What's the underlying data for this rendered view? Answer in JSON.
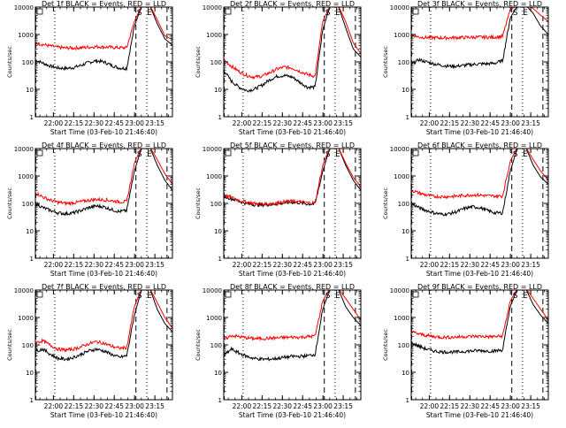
{
  "chart_data": [
    {
      "type": "line",
      "title": "Det 1f BLACK = Events, RED = LLD",
      "xlabel": "Start Time (03-Feb-10 21:46:40)",
      "ylabel": "Counts/sec",
      "yscale": "log",
      "ylim": [
        1,
        10000
      ],
      "xlim": [
        "21:46:40",
        "23:28"
      ],
      "x_ticks": [
        "22:00",
        "22:15",
        "22:30",
        "22:45",
        "23:00",
        "23:15"
      ],
      "y_ticks": [
        "1",
        "10",
        "100",
        "1000",
        "10000"
      ],
      "grid": false,
      "markers": [
        "S",
        "E"
      ],
      "series": [
        {
          "color": "#000000",
          "values": [
            120,
            90,
            70,
            60,
            58,
            62,
            75,
            95,
            110,
            100,
            75,
            60,
            58,
            2000,
            12000,
            12000,
            2500,
            700,
            400
          ]
        },
        {
          "color": "#ff0000",
          "values": [
            500,
            430,
            380,
            340,
            320,
            320,
            330,
            345,
            360,
            350,
            340,
            330,
            330,
            3000,
            12000,
            12000,
            3500,
            900,
            650
          ]
        }
      ],
      "vlines": [
        {
          "x": "21:47",
          "style": "dashed"
        },
        {
          "x": "22:01",
          "style": "dotted"
        },
        {
          "x": "23:01",
          "style": "dashed"
        },
        {
          "x": "23:09",
          "style": "dotted"
        },
        {
          "x": "23:24",
          "style": "dashed"
        }
      ]
    },
    {
      "type": "line",
      "title": "Det 2f BLACK = Events, RED = LLD",
      "xlabel": "Start Time (03-Feb-10 21:46:40)",
      "ylabel": "Counts/sec",
      "yscale": "log",
      "ylim": [
        1,
        10000
      ],
      "xlim": [
        "21:46:40",
        "23:28"
      ],
      "x_ticks": [
        "22:00",
        "22:15",
        "22:30",
        "22:45",
        "23:00",
        "23:15"
      ],
      "y_ticks": [
        "1",
        "10",
        "100",
        "1000",
        "10000"
      ],
      "grid": false,
      "markers": [
        "S",
        "E"
      ],
      "series": [
        {
          "color": "#000000",
          "values": [
            50,
            20,
            12,
            9,
            10,
            14,
            22,
            30,
            32,
            28,
            18,
            12,
            12,
            1500,
            12000,
            12000,
            1800,
            300,
            150
          ]
        },
        {
          "color": "#ff0000",
          "values": [
            120,
            70,
            45,
            32,
            28,
            30,
            40,
            55,
            65,
            60,
            45,
            35,
            30,
            3000,
            12000,
            12000,
            3000,
            500,
            200
          ]
        }
      ],
      "vlines": [
        {
          "x": "21:47",
          "style": "dashed"
        },
        {
          "x": "22:01",
          "style": "dotted"
        },
        {
          "x": "23:01",
          "style": "dashed"
        },
        {
          "x": "23:09",
          "style": "dotted"
        },
        {
          "x": "23:24",
          "style": "dashed"
        }
      ]
    },
    {
      "type": "line",
      "title": "Det 3f BLACK = Events, RED = LLD",
      "xlabel": "Start Time (03-Feb-10 21:46:40)",
      "ylabel": "Counts/sec",
      "yscale": "log",
      "ylim": [
        1,
        10000
      ],
      "xlim": [
        "21:46:40",
        "23:28"
      ],
      "x_ticks": [
        "22:00",
        "22:15",
        "22:30",
        "22:45",
        "23:00",
        "23:15"
      ],
      "y_ticks": [
        "1",
        "10",
        "100",
        "1000",
        "10000"
      ],
      "grid": false,
      "markers": [
        "S",
        "E"
      ],
      "series": [
        {
          "color": "#000000",
          "values": [
            80,
            120,
            100,
            85,
            75,
            70,
            70,
            75,
            80,
            85,
            85,
            90,
            110,
            4000,
            12000,
            12000,
            6000,
            2000,
            1000
          ]
        },
        {
          "color": "#ff0000",
          "values": [
            1000,
            800,
            780,
            760,
            750,
            760,
            770,
            780,
            790,
            800,
            790,
            800,
            850,
            8000,
            12000,
            12000,
            9000,
            5000,
            3000
          ]
        }
      ],
      "vlines": [
        {
          "x": "21:47",
          "style": "dashed"
        },
        {
          "x": "22:01",
          "style": "dotted"
        },
        {
          "x": "23:01",
          "style": "dashed"
        },
        {
          "x": "23:09",
          "style": "dotted"
        },
        {
          "x": "23:24",
          "style": "dashed"
        }
      ]
    },
    {
      "type": "line",
      "title": "Det 4f BLACK = Events, RED = LLD",
      "xlabel": "Start Time (03-Feb-10 21:46:40)",
      "ylabel": "Counts/sec",
      "yscale": "log",
      "ylim": [
        1,
        10000
      ],
      "xlim": [
        "21:46:40",
        "23:28"
      ],
      "x_ticks": [
        "22:00",
        "22:15",
        "22:30",
        "22:45",
        "23:00",
        "23:15"
      ],
      "y_ticks": [
        "1",
        "10",
        "100",
        "1000",
        "10000"
      ],
      "grid": false,
      "markers": [
        "S",
        "E"
      ],
      "series": [
        {
          "color": "#000000",
          "values": [
            100,
            70,
            55,
            45,
            42,
            45,
            55,
            70,
            80,
            75,
            60,
            50,
            55,
            1500,
            12000,
            12000,
            2500,
            700,
            300
          ]
        },
        {
          "color": "#ff0000",
          "values": [
            250,
            170,
            130,
            110,
            100,
            105,
            115,
            130,
            140,
            135,
            125,
            115,
            115,
            3000,
            12000,
            12000,
            4000,
            1200,
            500
          ]
        }
      ],
      "vlines": [
        {
          "x": "21:47",
          "style": "dashed"
        },
        {
          "x": "22:01",
          "style": "dotted"
        },
        {
          "x": "23:01",
          "style": "dashed"
        },
        {
          "x": "23:09",
          "style": "dotted"
        },
        {
          "x": "23:24",
          "style": "dashed"
        }
      ]
    },
    {
      "type": "line",
      "title": "Det 5f BLACK = Events, RED = LLD",
      "xlabel": "Start Time (03-Feb-10 21:46:40)",
      "ylabel": "Counts/sec",
      "yscale": "log",
      "ylim": [
        1,
        10000
      ],
      "xlim": [
        "21:46:40",
        "23:28"
      ],
      "x_ticks": [
        "22:00",
        "22:15",
        "22:30",
        "22:45",
        "23:00",
        "23:15"
      ],
      "y_ticks": [
        "1",
        "10",
        "100",
        "1000",
        "10000"
      ],
      "grid": false,
      "markers": [
        "S",
        "E"
      ],
      "series": [
        {
          "color": "#000000",
          "values": [
            180,
            150,
            120,
            100,
            90,
            88,
            90,
            95,
            105,
            110,
            105,
            95,
            95,
            1500,
            12000,
            12000,
            2500,
            700,
            300
          ]
        },
        {
          "color": "#ff0000",
          "values": [
            200,
            165,
            130,
            110,
            100,
            95,
            98,
            105,
            115,
            120,
            115,
            105,
            105,
            2500,
            12000,
            12000,
            3000,
            900,
            400
          ]
        }
      ],
      "vlines": [
        {
          "x": "21:47",
          "style": "dashed"
        },
        {
          "x": "22:01",
          "style": "dotted"
        },
        {
          "x": "23:01",
          "style": "dashed"
        },
        {
          "x": "23:09",
          "style": "dotted"
        },
        {
          "x": "23:24",
          "style": "dashed"
        }
      ]
    },
    {
      "type": "line",
      "title": "Det 6f BLACK = Events, RED = LLD",
      "xlabel": "Start Time (03-Feb-10 21:46:40)",
      "ylabel": "Counts/sec",
      "yscale": "log",
      "ylim": [
        1,
        10000
      ],
      "xlim": [
        "21:46:40",
        "23:28"
      ],
      "x_ticks": [
        "22:00",
        "22:15",
        "22:30",
        "22:45",
        "23:00",
        "23:15"
      ],
      "y_ticks": [
        "1",
        "10",
        "100",
        "1000",
        "10000"
      ],
      "grid": false,
      "markers": [
        "S",
        "E"
      ],
      "series": [
        {
          "color": "#000000",
          "values": [
            100,
            70,
            55,
            45,
            40,
            42,
            50,
            65,
            75,
            70,
            55,
            45,
            45,
            1500,
            12000,
            12000,
            2500,
            900,
            500
          ]
        },
        {
          "color": "#ff0000",
          "values": [
            300,
            240,
            200,
            180,
            175,
            178,
            185,
            195,
            205,
            200,
            190,
            185,
            185,
            3500,
            12000,
            12000,
            4000,
            1500,
            700
          ]
        }
      ],
      "vlines": [
        {
          "x": "21:47",
          "style": "dashed"
        },
        {
          "x": "22:01",
          "style": "dotted"
        },
        {
          "x": "23:01",
          "style": "dashed"
        },
        {
          "x": "23:09",
          "style": "dotted"
        },
        {
          "x": "23:24",
          "style": "dashed"
        }
      ]
    },
    {
      "type": "line",
      "title": "Det 7f BLACK = Events, RED = LLD",
      "xlabel": "Start Time (03-Feb-10 21:46:40)",
      "ylabel": "Counts/sec",
      "yscale": "log",
      "ylim": [
        1,
        10000
      ],
      "xlim": [
        "21:46:40",
        "23:28"
      ],
      "x_ticks": [
        "22:00",
        "22:15",
        "22:30",
        "22:45",
        "23:00",
        "23:15"
      ],
      "y_ticks": [
        "1",
        "10",
        "100",
        "1000",
        "10000"
      ],
      "grid": false,
      "markers": [
        "S",
        "E"
      ],
      "series": [
        {
          "color": "#000000",
          "values": [
            60,
            70,
            45,
            32,
            30,
            35,
            45,
            60,
            70,
            60,
            45,
            35,
            40,
            1200,
            12000,
            12000,
            2000,
            600,
            300
          ]
        },
        {
          "color": "#ff0000",
          "values": [
            120,
            140,
            95,
            70,
            65,
            70,
            85,
            110,
            130,
            115,
            90,
            75,
            80,
            2500,
            12000,
            12000,
            3500,
            1000,
            400
          ]
        }
      ],
      "vlines": [
        {
          "x": "21:47",
          "style": "dashed"
        },
        {
          "x": "22:01",
          "style": "dotted"
        },
        {
          "x": "23:01",
          "style": "dashed"
        },
        {
          "x": "23:09",
          "style": "dotted"
        },
        {
          "x": "23:24",
          "style": "dashed"
        }
      ]
    },
    {
      "type": "line",
      "title": "Det 8f BLACK = Events, RED = LLD",
      "xlabel": "Start Time (03-Feb-10 21:46:40)",
      "ylabel": "Counts/sec",
      "yscale": "log",
      "ylim": [
        1,
        10000
      ],
      "xlim": [
        "21:46:40",
        "23:28"
      ],
      "x_ticks": [
        "22:00",
        "22:15",
        "22:30",
        "22:45",
        "23:00",
        "23:15"
      ],
      "y_ticks": [
        "1",
        "10",
        "100",
        "1000",
        "10000"
      ],
      "grid": false,
      "markers": [
        "S",
        "E"
      ],
      "series": [
        {
          "color": "#000000",
          "values": [
            40,
            70,
            50,
            38,
            32,
            30,
            30,
            32,
            35,
            38,
            38,
            40,
            45,
            2000,
            12000,
            12000,
            2500,
            1000,
            500
          ]
        },
        {
          "color": "#ff0000",
          "values": [
            150,
            220,
            200,
            180,
            170,
            170,
            175,
            180,
            185,
            190,
            190,
            200,
            210,
            4000,
            12000,
            12000,
            5000,
            2000,
            800
          ]
        }
      ],
      "vlines": [
        {
          "x": "21:47",
          "style": "dashed"
        },
        {
          "x": "22:01",
          "style": "dotted"
        },
        {
          "x": "23:01",
          "style": "dashed"
        },
        {
          "x": "23:09",
          "style": "dotted"
        },
        {
          "x": "23:24",
          "style": "dashed"
        }
      ]
    },
    {
      "type": "line",
      "title": "Det 9f BLACK = Events, RED = LLD",
      "xlabel": "Start Time (03-Feb-10 21:46:40)",
      "ylabel": "Counts/sec",
      "yscale": "log",
      "ylim": [
        1,
        10000
      ],
      "xlim": [
        "21:46:40",
        "23:28"
      ],
      "x_ticks": [
        "22:00",
        "22:15",
        "22:30",
        "22:45",
        "23:00",
        "23:15"
      ],
      "y_ticks": [
        "1",
        "10",
        "100",
        "1000",
        "10000"
      ],
      "grid": false,
      "markers": [
        "S",
        "E"
      ],
      "series": [
        {
          "color": "#000000",
          "values": [
            120,
            90,
            70,
            60,
            55,
            55,
            55,
            58,
            60,
            62,
            60,
            60,
            65,
            2500,
            12000,
            12000,
            3000,
            1200,
            600
          ]
        },
        {
          "color": "#ff0000",
          "values": [
            300,
            250,
            220,
            200,
            190,
            190,
            195,
            200,
            205,
            205,
            200,
            200,
            210,
            4000,
            12000,
            12000,
            5000,
            2000,
            800
          ]
        }
      ],
      "vlines": [
        {
          "x": "21:47",
          "style": "dashed"
        },
        {
          "x": "22:01",
          "style": "dotted"
        },
        {
          "x": "23:01",
          "style": "dashed"
        },
        {
          "x": "23:09",
          "style": "dotted"
        },
        {
          "x": "23:24",
          "style": "dashed"
        }
      ]
    }
  ]
}
